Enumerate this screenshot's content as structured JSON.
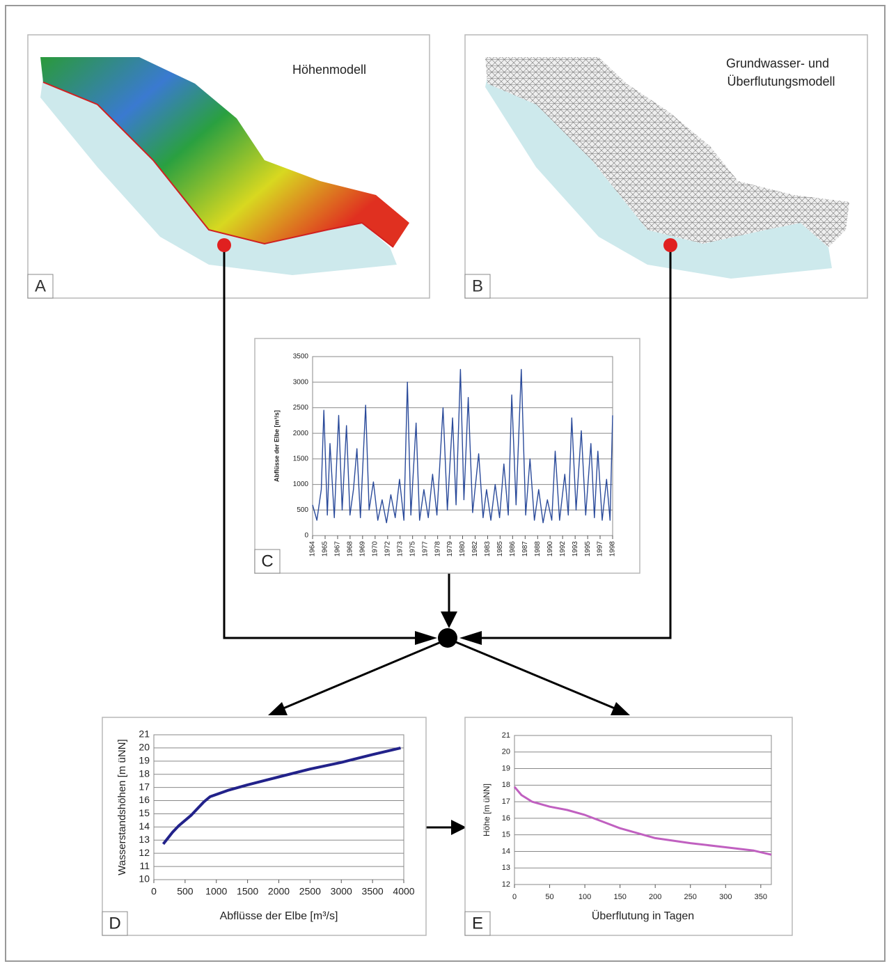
{
  "panels": [
    {
      "label": "A",
      "title": [
        "Höhenmodell"
      ]
    },
    {
      "label": "B",
      "title": [
        "Grundwasser- und",
        "Überflutungsmodell"
      ]
    }
  ],
  "chart_data": [
    {
      "type": "line",
      "panel_label": "C",
      "ylabel": "Abflüsse der Elbe [m³/s]",
      "color": "#2a4a9a",
      "x": [
        1964,
        1964.5,
        1965,
        1965.3,
        1965.7,
        1966,
        1966.5,
        1967,
        1967.4,
        1967.9,
        1968.3,
        1968.7,
        1969.1,
        1969.5,
        1970.1,
        1970.5,
        1971,
        1971.5,
        1972,
        1972.5,
        1973,
        1973.5,
        1974,
        1974.5,
        1974.9,
        1975.3,
        1975.9,
        1976.3,
        1976.8,
        1977.3,
        1977.8,
        1978.3,
        1979,
        1979.5,
        1980.1,
        1980.5,
        1981,
        1981.4,
        1981.9,
        1982.4,
        1983.1,
        1983.6,
        1984,
        1984.5,
        1985,
        1985.5,
        1986,
        1986.5,
        1986.9,
        1987.4,
        1988,
        1988.5,
        1989,
        1989.5,
        1990,
        1990.5,
        1991,
        1991.5,
        1991.9,
        1992.4,
        1993,
        1993.4,
        1993.8,
        1994.3,
        1994.9,
        1995.4,
        1996,
        1996.4,
        1996.8,
        1997.3,
        1997.8,
        1998.2,
        1998.5
      ],
      "values": [
        600,
        300,
        900,
        2450,
        400,
        1800,
        350,
        2350,
        500,
        2150,
        400,
        900,
        1700,
        350,
        2550,
        500,
        1050,
        300,
        700,
        250,
        800,
        350,
        1100,
        300,
        3000,
        400,
        2200,
        300,
        900,
        350,
        1200,
        400,
        2500,
        500,
        2300,
        600,
        3250,
        700,
        2700,
        450,
        1600,
        350,
        900,
        300,
        1000,
        350,
        1400,
        400,
        2750,
        600,
        3250,
        400,
        1500,
        300,
        900,
        250,
        700,
        300,
        1650,
        300,
        1200,
        400,
        2300,
        500,
        2050,
        400,
        1800,
        350,
        1650,
        300,
        1100,
        300,
        2350
      ],
      "xlim": [
        1964,
        1998.5
      ],
      "xticks": [
        {
          "value": 1964,
          "label": "1964"
        },
        {
          "value": 1965.44,
          "label": "1965"
        },
        {
          "value": 1966.88,
          "label": "1967"
        },
        {
          "value": 1968.31,
          "label": "1968"
        },
        {
          "value": 1969.75,
          "label": "1969"
        },
        {
          "value": 1971.19,
          "label": "1970"
        },
        {
          "value": 1972.63,
          "label": "1972"
        },
        {
          "value": 1974.06,
          "label": "1973"
        },
        {
          "value": 1975.5,
          "label": "1975"
        },
        {
          "value": 1976.94,
          "label": "1977"
        },
        {
          "value": 1978.38,
          "label": "1978"
        },
        {
          "value": 1979.81,
          "label": "1979"
        },
        {
          "value": 1981.25,
          "label": "1980"
        },
        {
          "value": 1982.69,
          "label": "1982"
        },
        {
          "value": 1984.13,
          "label": "1983"
        },
        {
          "value": 1985.56,
          "label": "1985"
        },
        {
          "value": 1987,
          "label": "1986"
        },
        {
          "value": 1988.44,
          "label": "1987"
        },
        {
          "value": 1989.88,
          "label": "1988"
        },
        {
          "value": 1991.31,
          "label": "1990"
        },
        {
          "value": 1992.75,
          "label": "1992"
        },
        {
          "value": 1994.19,
          "label": "1993"
        },
        {
          "value": 1995.63,
          "label": "1995"
        },
        {
          "value": 1997.06,
          "label": "1997"
        },
        {
          "value": 1998.5,
          "label": "1998"
        }
      ],
      "ylim": [
        0,
        3500
      ],
      "yticks": [
        0,
        500,
        1000,
        1500,
        2000,
        2500,
        3000,
        3500
      ],
      "grid": true
    },
    {
      "type": "line",
      "panel_label": "D",
      "xlabel": "Abflüsse der Elbe [m³/s]",
      "ylabel": "Wasserstandshöhen [m üNN]",
      "color": "#22228a",
      "x": [
        150,
        300,
        400,
        600,
        800,
        900,
        1200,
        1500,
        2000,
        2500,
        3000,
        3500,
        3950
      ],
      "values": [
        12.7,
        13.6,
        14.1,
        14.9,
        15.9,
        16.3,
        16.8,
        17.2,
        17.8,
        18.4,
        18.9,
        19.5,
        20
      ],
      "xlim": [
        0,
        4000
      ],
      "xticks": [
        0,
        500,
        1000,
        1500,
        2000,
        2500,
        3000,
        3500,
        4000
      ],
      "ylim": [
        10,
        21
      ],
      "yticks": [
        10,
        11,
        12,
        13,
        14,
        15,
        16,
        17,
        18,
        19,
        20,
        21
      ],
      "grid": true
    },
    {
      "type": "line",
      "panel_label": "E",
      "xlabel": "Überflutung in Tagen",
      "ylabel": "Höhe [m üNN]",
      "color": "#c060c0",
      "x": [
        0,
        10,
        25,
        50,
        75,
        100,
        125,
        150,
        175,
        200,
        250,
        300,
        340,
        365
      ],
      "values": [
        17.9,
        17.4,
        17.0,
        16.7,
        16.5,
        16.2,
        15.8,
        15.4,
        15.1,
        14.8,
        14.5,
        14.25,
        14.05,
        13.8
      ],
      "xlim": [
        0,
        365
      ],
      "xticks": [
        0,
        50,
        100,
        150,
        200,
        250,
        300,
        350
      ],
      "ylim": [
        12,
        21
      ],
      "yticks": [
        12,
        13,
        14,
        15,
        16,
        17,
        18,
        19,
        20,
        21
      ],
      "grid": true
    }
  ]
}
